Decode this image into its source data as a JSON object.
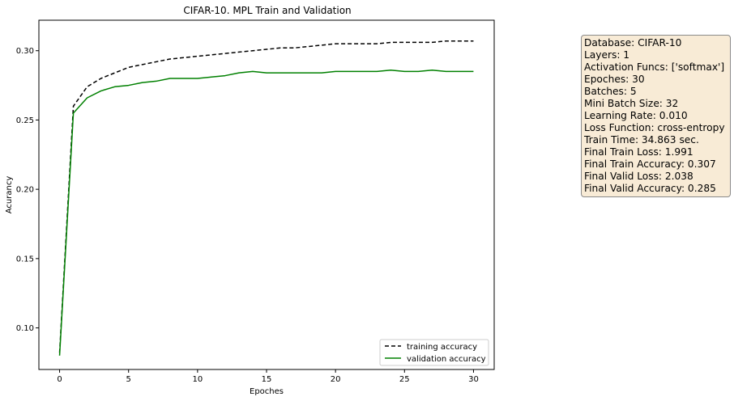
{
  "chart_data": {
    "type": "line",
    "title": "CIFAR-10. MPL Train and Validation",
    "xlabel": "Epoches",
    "ylabel": "Acurancy",
    "xlim": [
      -1.5,
      31.5
    ],
    "ylim": [
      0.07,
      0.322
    ],
    "xticks": [
      0,
      5,
      10,
      15,
      20,
      25,
      30
    ],
    "yticks": [
      0.1,
      0.15,
      0.2,
      0.25,
      0.3
    ],
    "ytick_labels": [
      "0.10",
      "0.15",
      "0.20",
      "0.25",
      "0.30"
    ],
    "grid": false,
    "legend_position": "lower-right",
    "x": [
      0,
      1,
      2,
      3,
      4,
      5,
      6,
      7,
      8,
      9,
      10,
      11,
      12,
      13,
      14,
      15,
      16,
      17,
      18,
      19,
      20,
      21,
      22,
      23,
      24,
      25,
      26,
      27,
      28,
      29,
      30
    ],
    "series": [
      {
        "name": "training accuracy",
        "color": "#000000",
        "style": "dashed",
        "values": [
          0.082,
          0.26,
          0.274,
          0.28,
          0.284,
          0.288,
          0.29,
          0.292,
          0.294,
          0.295,
          0.296,
          0.297,
          0.298,
          0.299,
          0.3,
          0.301,
          0.302,
          0.302,
          0.303,
          0.304,
          0.305,
          0.305,
          0.305,
          0.305,
          0.306,
          0.306,
          0.306,
          0.306,
          0.307,
          0.307,
          0.307
        ]
      },
      {
        "name": "validation accuracy",
        "color": "#008000",
        "style": "solid",
        "values": [
          0.08,
          0.255,
          0.266,
          0.271,
          0.274,
          0.275,
          0.277,
          0.278,
          0.28,
          0.28,
          0.28,
          0.281,
          0.282,
          0.284,
          0.285,
          0.284,
          0.284,
          0.284,
          0.284,
          0.284,
          0.285,
          0.285,
          0.285,
          0.285,
          0.286,
          0.285,
          0.285,
          0.286,
          0.285,
          0.285,
          0.285
        ]
      }
    ]
  },
  "info_box": {
    "lines": [
      "Database: CIFAR-10",
      "Layers: 1",
      "Activation Funcs: ['softmax']",
      "Epoches: 30",
      "Batches: 5",
      "Mini Batch Size: 32",
      "Learning Rate: 0.010",
      "Loss Function: cross-entropy",
      "Train Time: 34.863 sec.",
      "Final Train Loss: 1.991",
      "Final Train Accuracy: 0.307",
      "Final Valid Loss: 2.038",
      "Final Valid Accuracy: 0.285"
    ]
  }
}
